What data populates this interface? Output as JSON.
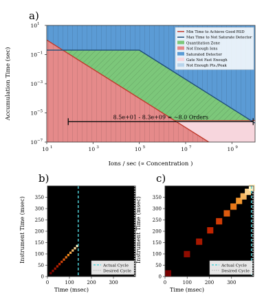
{
  "chart_data": [
    {
      "panel": "a)",
      "type": "area",
      "xscale": "log",
      "yscale": "log",
      "xlabel": "Ions / sec (∝ Concentration )",
      "ylabel": "Accumulation Time (sec)",
      "xlim": [
        10,
        10000000000
      ],
      "ylim": [
        1e-07,
        10
      ],
      "xticks": [
        {
          "v": 10,
          "label": "10"
        },
        {
          "v": 1000,
          "label": "10"
        },
        {
          "v": 100000,
          "label": "10"
        },
        {
          "v": 10000000,
          "label": "10"
        },
        {
          "v": 1000000000,
          "label": "10"
        }
      ],
      "xtick_exp": [
        "1",
        "3",
        "5",
        "7",
        "9"
      ],
      "yticks": [
        {
          "v": 1e-07,
          "label": "10"
        },
        {
          "v": 1e-05,
          "label": "10"
        },
        {
          "v": 0.001,
          "label": "10"
        },
        {
          "v": 0.1,
          "label": "10"
        },
        {
          "v": 10,
          "label": "10"
        }
      ],
      "ytick_exp": [
        "−7",
        "−5",
        "−3",
        "−1",
        "1"
      ],
      "lines": [
        {
          "name": "Min Time to Achieve Good RSD",
          "color": "#c0392b",
          "x": [
            10,
            10000000000
          ],
          "y": [
            1,
            1e-09
          ]
        },
        {
          "name": "Max Time to Not Saturate Detector",
          "color": "#1f4e79",
          "x": [
            10,
            100000,
            10000000000
          ],
          "y": [
            0.2,
            0.2,
            2e-06
          ]
        }
      ],
      "regions": [
        {
          "name": "Quantitation Zone",
          "color": "#7cc77a"
        },
        {
          "name": "Not Enough Ions",
          "color": "#e58a8a"
        },
        {
          "name": "Saturated Detector",
          "color": "#5b9bd5"
        },
        {
          "name": "Gate Not Fast Enough",
          "color": "#f7d6dd"
        },
        {
          "name": "Not Enough Pts./Peak",
          "color": "#b8d4ec"
        }
      ],
      "bounds": {
        "gate_min_time": 3e-06,
        "max_time": 0.2
      },
      "annotation": {
        "text": "8.5e+01 - 8.3e+09 = ~8.0 Orders",
        "x_range": [
          85,
          8300000000
        ],
        "y": 2.5e-06
      },
      "legend": "top-right",
      "grid": false
    },
    {
      "panel": "b)",
      "type": "heatmap",
      "xlabel": "Time (msec)",
      "ylabel": "Instrument Time (msec)",
      "xlim": [
        0,
        400
      ],
      "ylim": [
        0,
        400
      ],
      "xticks": [
        0,
        100,
        200,
        300
      ],
      "yticks": [
        0,
        50,
        100,
        150,
        200,
        250,
        300,
        350
      ],
      "cell_size": 10,
      "cells": [
        {
          "x": 10,
          "y": 10
        },
        {
          "x": 20,
          "y": 20
        },
        {
          "x": 30,
          "y": 30
        },
        {
          "x": 40,
          "y": 40
        },
        {
          "x": 50,
          "y": 50
        },
        {
          "x": 60,
          "y": 60
        },
        {
          "x": 70,
          "y": 70
        },
        {
          "x": 80,
          "y": 80
        },
        {
          "x": 90,
          "y": 90
        },
        {
          "x": 100,
          "y": 100
        },
        {
          "x": 110,
          "y": 110
        },
        {
          "x": 120,
          "y": 120
        },
        {
          "x": 130,
          "y": 130
        }
      ],
      "actual_cycle": 140,
      "desired_cycle": 400,
      "legend_entries": [
        "Actual Cycle",
        "Desired Cycle"
      ],
      "legend": "bottom-right"
    },
    {
      "panel": "c)",
      "type": "heatmap",
      "xlabel": "Time (msec)",
      "ylabel": "Instrument Time (msec)",
      "xlim": [
        0,
        400
      ],
      "ylim": [
        0,
        400
      ],
      "xticks": [
        0,
        100,
        200,
        300
      ],
      "yticks": [
        0,
        50,
        100,
        150,
        200,
        250,
        300,
        350
      ],
      "cell_size": 28,
      "cells": [
        {
          "x": 0,
          "y": 0
        },
        {
          "x": 85,
          "y": 85
        },
        {
          "x": 140,
          "y": 140
        },
        {
          "x": 190,
          "y": 190
        },
        {
          "x": 230,
          "y": 230
        },
        {
          "x": 265,
          "y": 265
        },
        {
          "x": 295,
          "y": 295
        },
        {
          "x": 320,
          "y": 320
        },
        {
          "x": 340,
          "y": 340
        },
        {
          "x": 360,
          "y": 360
        },
        {
          "x": 378,
          "y": 378
        }
      ],
      "actual_cycle": 390,
      "desired_cycle": 400,
      "legend_entries": [
        "Actual Cycle",
        "Desired Cycle"
      ],
      "legend": "bottom-right"
    }
  ]
}
